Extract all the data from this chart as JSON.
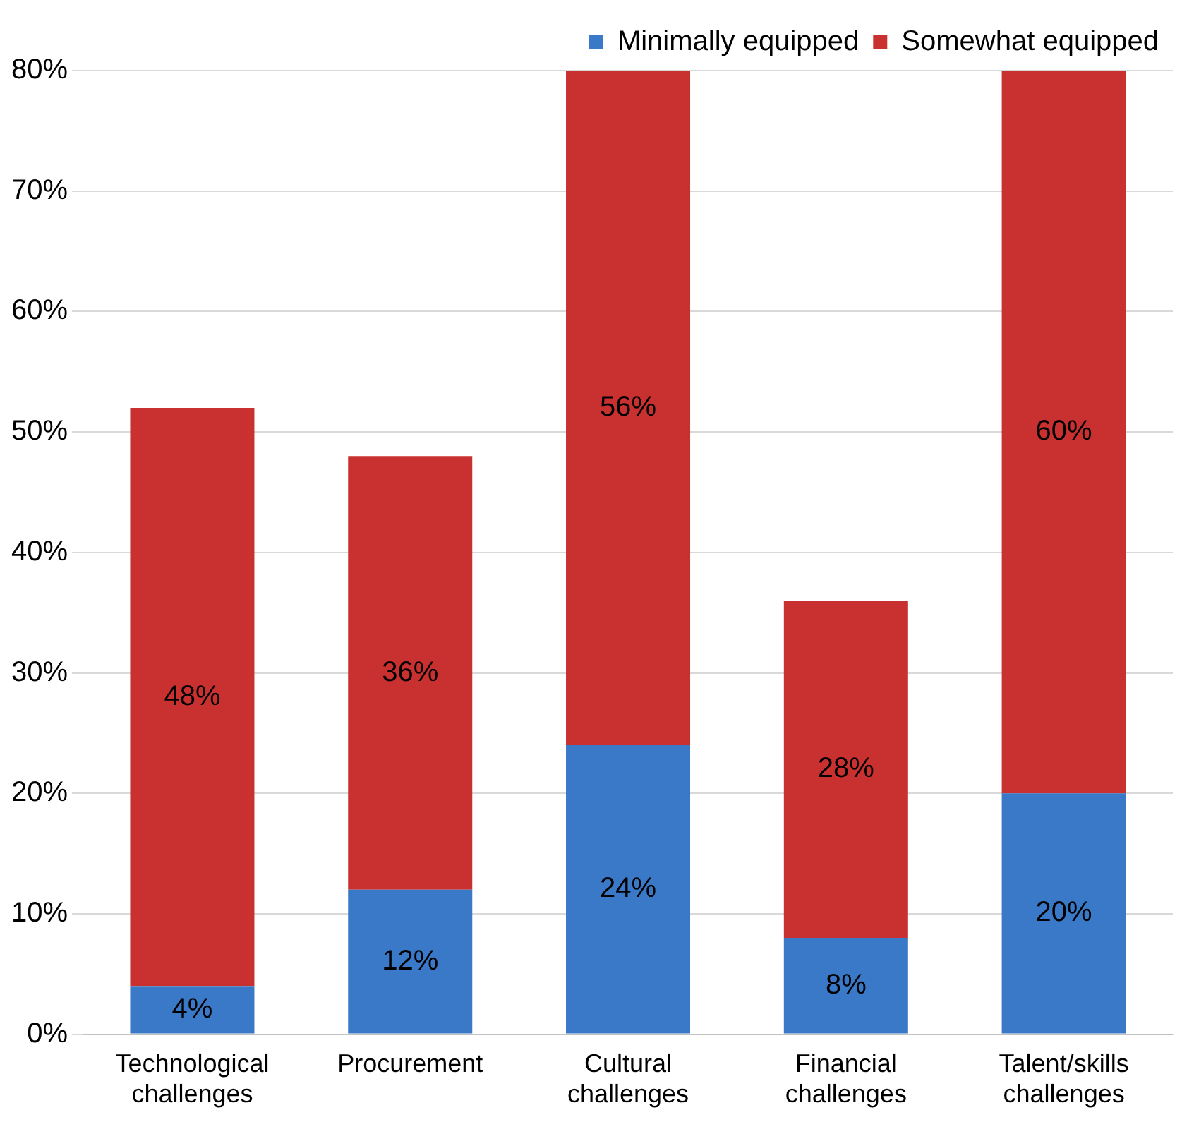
{
  "chart_data": {
    "type": "bar",
    "stacked": true,
    "categories": [
      "Technological challenges",
      "Procurement",
      "Cultural challenges",
      "Financial challenges",
      "Talent/skills challenges"
    ],
    "series": [
      {
        "name": "Minimally equipped",
        "color": "#3a78c8",
        "values": [
          4,
          12,
          24,
          8,
          20
        ],
        "value_labels": [
          "4%",
          "12%",
          "24%",
          "8%",
          "20%"
        ]
      },
      {
        "name": "Somewhat equipped",
        "color": "#c8312f",
        "values": [
          48,
          36,
          56,
          28,
          60
        ],
        "value_labels": [
          "48%",
          "36%",
          "56%",
          "28%",
          "60%"
        ]
      }
    ],
    "ylim": [
      0,
      80
    ],
    "yticks": [
      {
        "value": 0,
        "label": "0%"
      },
      {
        "value": 10,
        "label": "10%"
      },
      {
        "value": 20,
        "label": "20%"
      },
      {
        "value": 30,
        "label": "30%"
      },
      {
        "value": 40,
        "label": "40%"
      },
      {
        "value": 50,
        "label": "50%"
      },
      {
        "value": 60,
        "label": "60%"
      },
      {
        "value": 70,
        "label": "70%"
      },
      {
        "value": 80,
        "label": "80%"
      }
    ],
    "grid": "y",
    "legend": "top right"
  }
}
